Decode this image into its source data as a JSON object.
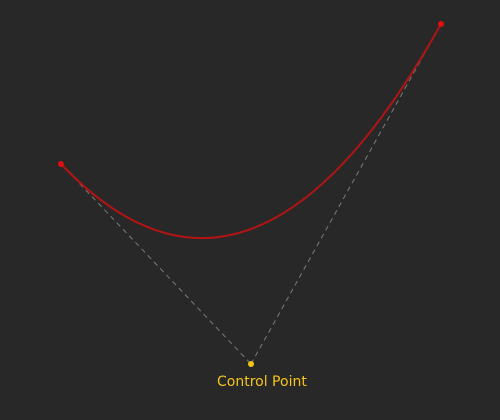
{
  "canvas": {
    "background_color": "#282828"
  },
  "curve": {
    "type": "quadratic-bezier",
    "color": "#b01414",
    "endpoint_color": "#e01010"
  },
  "guides": {
    "color": "#7a7a7a",
    "style": "dashed"
  },
  "control_point": {
    "label": "Control Point",
    "color": "#f5c518"
  }
}
